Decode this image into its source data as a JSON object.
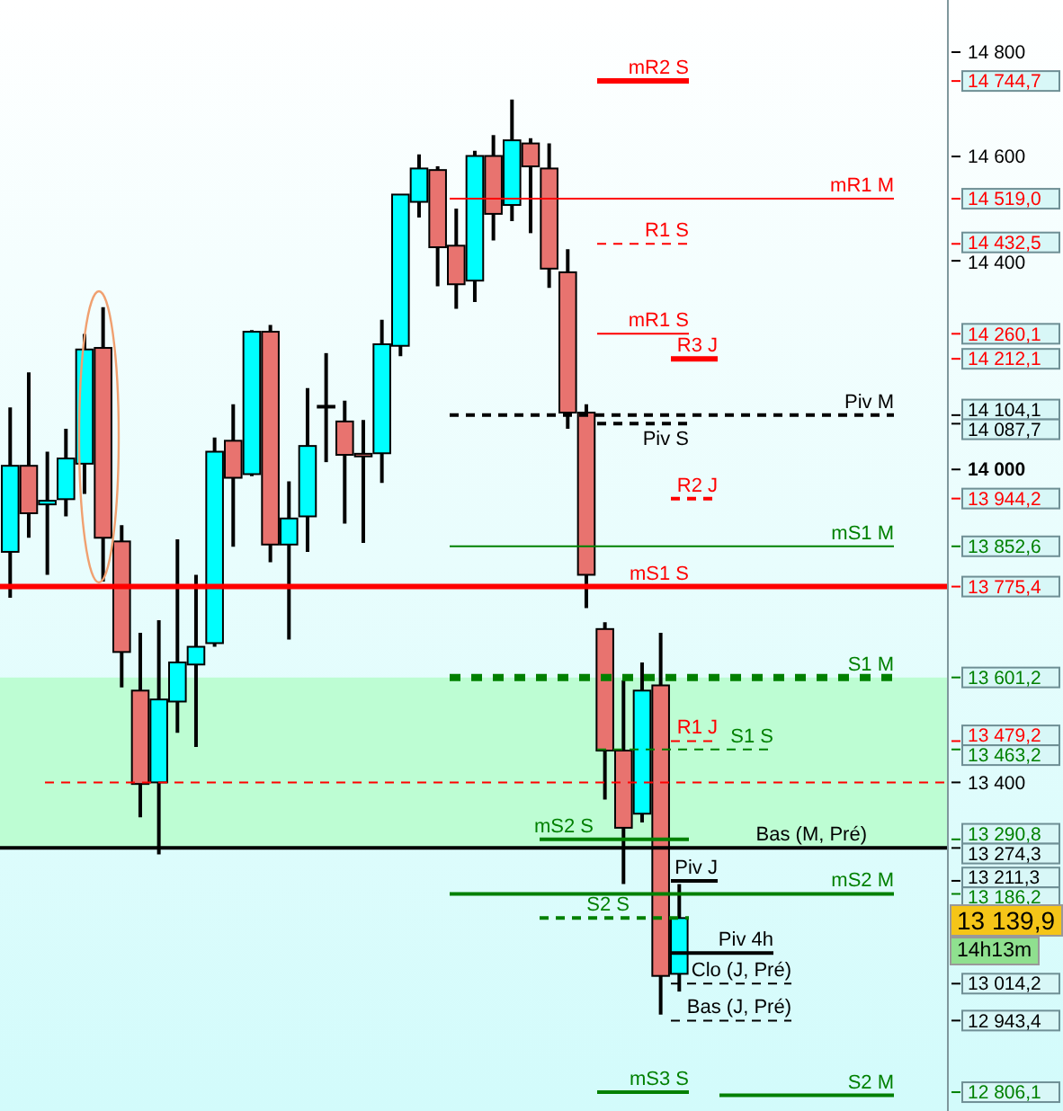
{
  "chart_data": {
    "type": "candlestick",
    "categories": [
      null,
      null,
      null,
      null,
      null,
      null,
      null,
      null,
      null,
      null,
      null,
      null,
      null,
      null,
      null,
      null,
      null,
      null,
      null,
      null,
      null,
      null,
      null,
      null,
      null,
      null,
      null,
      null,
      null,
      null,
      null,
      null,
      null,
      null,
      null,
      null,
      null,
      null,
      null,
      null,
      null,
      null,
      null,
      null,
      null,
      null,
      null,
      null,
      null,
      null,
      null
    ],
    "ohlc": [
      [
        13842,
        14119,
        13754,
        14007
      ],
      [
        14007,
        14186,
        13869,
        13916
      ],
      [
        13933,
        14034,
        13798,
        13940
      ],
      [
        13943,
        14078,
        13910,
        14021
      ],
      [
        14011,
        14260,
        13953,
        14230
      ],
      [
        14233,
        14311,
        13785,
        13869
      ],
      [
        13862,
        13893,
        13582,
        13650
      ],
      [
        13576,
        13687,
        13333,
        13397
      ],
      [
        13400,
        13711,
        13262,
        13559
      ],
      [
        13555,
        13866,
        13495,
        13630
      ],
      [
        13626,
        13798,
        13468,
        13660
      ],
      [
        13667,
        14061,
        13660,
        14034
      ],
      [
        14055,
        14125,
        13852,
        13984
      ],
      [
        13991,
        14267,
        13987,
        14264
      ],
      [
        14264,
        14277,
        13822,
        13856
      ],
      [
        13856,
        13977,
        13674,
        13906
      ],
      [
        13910,
        14156,
        13842,
        14045
      ],
      [
        14119,
        14223,
        14014,
        14122
      ],
      [
        14092,
        14132,
        13896,
        14028
      ],
      [
        14030,
        14095,
        13859,
        14025
      ],
      [
        14031,
        14287,
        13974,
        14240
      ],
      [
        14237,
        14527,
        14217,
        14527
      ],
      [
        14513,
        14604,
        14483,
        14577
      ],
      [
        14574,
        14581,
        14351,
        14426
      ],
      [
        14429,
        14500,
        14308,
        14355
      ],
      [
        14362,
        14611,
        14321,
        14601
      ],
      [
        14601,
        14641,
        14439,
        14490
      ],
      [
        14507,
        14709,
        14476,
        14631
      ],
      [
        14625,
        14635,
        14453,
        14581
      ],
      [
        14577,
        14625,
        14348,
        14385
      ],
      [
        14378,
        14422,
        14078,
        14109
      ],
      [
        14109,
        14125,
        13734,
        13798
      ],
      [
        13694,
        13707,
        13367,
        13461
      ],
      [
        13461,
        13596,
        13205,
        13313
      ],
      [
        13340,
        13630,
        13323,
        13576
      ],
      [
        13586,
        13687,
        12955,
        13029
      ],
      [
        13033,
        13205,
        12999,
        13139.9
      ],
      null,
      null,
      null,
      null,
      null,
      null,
      null,
      null,
      null,
      null,
      null,
      null,
      null,
      null
    ],
    "colors": [
      "#00ffff",
      "#e8736f",
      "#00ffff",
      "#00ffff",
      "#00ffff",
      "#e8736f",
      "#e8736f",
      "#e8736f",
      "#00ffff",
      "#00ffff",
      "#00ffff",
      "#00ffff",
      "#e8736f",
      "#00ffff",
      "#e8736f",
      "#00ffff",
      "#00ffff",
      "#00ffff",
      "#e8736f",
      "#e8736f",
      "#00ffff",
      "#00ffff",
      "#00ffff",
      "#e8736f",
      "#e8736f",
      "#00ffff",
      "#e8736f",
      "#00ffff",
      "#e8736f",
      "#e8736f",
      "#e8736f",
      "#e8736f",
      "#e8736f",
      "#e8736f",
      "#00ffff",
      "#e8736f",
      "#00ffff",
      null,
      null,
      null,
      null,
      null,
      null,
      null,
      null,
      null,
      null,
      null,
      null,
      null,
      null
    ],
    "ylim": [
      12770,
      14900
    ],
    "yticks": [
      {
        "value": 14800,
        "label": "14 800"
      },
      {
        "value": 14744.7,
        "label": "14 744,7"
      },
      {
        "value": 14600,
        "label": "14 600"
      },
      {
        "value": 14519.0,
        "label": "14 519,0"
      },
      {
        "value": 14432.5,
        "label": "14 432,5"
      },
      {
        "value": 14400,
        "label": "14 400"
      },
      {
        "value": 14260.1,
        "label": "14 260,1"
      },
      {
        "value": 14212.1,
        "label": "14 212,1"
      },
      {
        "value": 14104.1,
        "label": "14 104,1"
      },
      {
        "value": 14087.7,
        "label": "14 087,7"
      },
      {
        "value": 14000,
        "label": "14 000"
      },
      {
        "value": 13944.2,
        "label": "13 944,2"
      },
      {
        "value": 13852.6,
        "label": "13 852,6"
      },
      {
        "value": 13775.4,
        "label": "13 775,4"
      },
      {
        "value": 13601.2,
        "label": "13 601,2"
      },
      {
        "value": 13479.2,
        "label": "13 479,2"
      },
      {
        "value": 13463.2,
        "label": "13 463,2"
      },
      {
        "value": 13400,
        "label": "13 400"
      },
      {
        "value": 13290.8,
        "label": "13 290,8"
      },
      {
        "value": 13274.3,
        "label": "13 274,3"
      },
      {
        "value": 13211.3,
        "label": "13 211,3"
      },
      {
        "value": 13186.2,
        "label": "13 186,2"
      },
      {
        "value": 13014.2,
        "label": "13 014,2"
      },
      {
        "value": 12943.4,
        "label": "12 943,4"
      },
      {
        "value": 12806.1,
        "label": "12 806,1"
      }
    ],
    "tick_labels": "y",
    "grid": false,
    "legend": false,
    "ref_lines": [
      {
        "axis": "y",
        "value": 14744.7,
        "label": "mR2 S",
        "color": "#ff0000",
        "line_style": "solid"
      },
      {
        "axis": "y",
        "value": 14519.0,
        "label": "mR1 M",
        "color": "#ff0000",
        "line_style": "solid"
      },
      {
        "axis": "y",
        "value": 14432.5,
        "label": "R1 S",
        "color": "#ff0000",
        "line_style": "dashed"
      },
      {
        "axis": "y",
        "value": 14260.1,
        "label": "mR1 S",
        "color": "#ff0000",
        "line_style": "solid"
      },
      {
        "axis": "y",
        "value": 14212.1,
        "label": "R3 J",
        "color": "#ff0000",
        "line_style": "solid"
      },
      {
        "axis": "y",
        "value": 14104.1,
        "label": "Piv M",
        "color": "#000000",
        "line_style": "dashed"
      },
      {
        "axis": "y",
        "value": 14087.7,
        "label": "Piv S",
        "color": "#000000",
        "line_style": "dashed"
      },
      {
        "axis": "y",
        "value": 13944.2,
        "label": "R2 J",
        "color": "#ff0000",
        "line_style": "dashed"
      },
      {
        "axis": "y",
        "value": 13852.6,
        "label": "mS1 M",
        "color": "#008000",
        "line_style": "solid"
      },
      {
        "axis": "y",
        "value": 13775.4,
        "label": "mS1 S",
        "color": "#ff0000",
        "line_style": "solid"
      },
      {
        "axis": "y",
        "value": 13601.2,
        "label": "S1 M",
        "color": "#008000",
        "line_style": "dotted"
      },
      {
        "axis": "y",
        "value": 13479.2,
        "label": "R1 J",
        "color": "#ff0000",
        "line_style": "dashed"
      },
      {
        "axis": "y",
        "value": 13463.2,
        "label": "S1 S",
        "color": "#008000",
        "line_style": "dashed"
      },
      {
        "axis": "y",
        "value": 13290.8,
        "label": "mS2 S",
        "color": "#008000",
        "line_style": "solid"
      },
      {
        "axis": "y",
        "value": 13274.3,
        "label": "Bas (M, Pré)",
        "color": "#000000",
        "line_style": "solid"
      },
      {
        "axis": "y",
        "value": 13211.3,
        "label": "Piv J",
        "color": "#000000",
        "line_style": "solid"
      },
      {
        "axis": "y",
        "value": 13186.2,
        "label": "mS2 M",
        "color": "#008000",
        "line_style": "solid"
      },
      {
        "axis": "y",
        "value": 13140,
        "label": "S2 S",
        "color": "#008000",
        "line_style": "dashed"
      },
      {
        "axis": "y",
        "value": 13073,
        "label": "Piv 4h",
        "color": "#000000",
        "line_style": "solid"
      },
      {
        "axis": "y",
        "value": 13014.2,
        "label": "Clo (J, Pré)",
        "color": "#000000",
        "line_style": "dashed"
      },
      {
        "axis": "y",
        "value": 12943.4,
        "label": "Bas (J, Pré)",
        "color": "#000000",
        "line_style": "dashed"
      },
      {
        "axis": "y",
        "value": 12806.1,
        "label": "mS3 S",
        "color": "#008000",
        "line_style": "solid"
      },
      {
        "axis": "y",
        "value": 12800,
        "label": "S2 M",
        "color": "#008000",
        "line_style": "solid"
      },
      {
        "axis": "y",
        "value": 13400,
        "color": "#ff0000",
        "line_style": "dashed"
      }
    ],
    "bands": [
      {
        "axis": "y",
        "from": 13274.3,
        "to": 13601.2,
        "color": "#bdfdd3"
      }
    ],
    "annotations": [
      "13 139,9",
      "14h13m"
    ]
  }
}
